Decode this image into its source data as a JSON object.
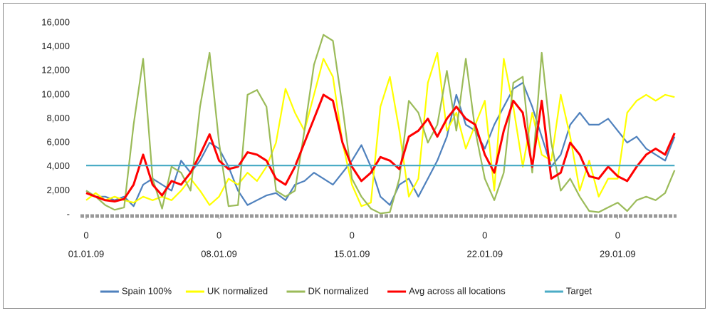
{
  "chart_data": {
    "type": "line",
    "x": [
      0,
      0.5,
      1,
      1.5,
      2,
      2.5,
      3,
      3.5,
      4,
      4.5,
      5,
      5.5,
      6,
      6.5,
      7,
      7.5,
      8,
      8.5,
      9,
      9.5,
      10,
      10.5,
      11,
      11.5,
      12,
      12.5,
      13,
      13.5,
      14,
      14.5,
      15,
      15.5,
      16,
      16.5,
      17,
      17.5,
      18,
      18.5,
      19,
      19.5,
      20,
      20.5,
      21,
      21.5,
      22,
      22.5,
      23,
      23.5,
      24,
      24.5,
      25,
      25.5,
      26,
      26.5,
      27,
      27.5,
      28,
      28.5,
      29,
      29.5,
      30,
      30.5,
      31
    ],
    "xlim": [
      -0.3,
      31.1
    ],
    "xticks": [
      {
        "value": 0,
        "hour": "0",
        "label": "01.01.09"
      },
      {
        "value": 7,
        "hour": "0",
        "label": "08.01.09"
      },
      {
        "value": 14,
        "hour": "0",
        "label": "15.01.09"
      },
      {
        "value": 21,
        "hour": "0",
        "label": "22.01.09"
      },
      {
        "value": 28,
        "hour": "0",
        "label": "29.01.09"
      }
    ],
    "ylim": [
      0,
      16000
    ],
    "yticks": [
      {
        "value": 0,
        "label": "-"
      },
      {
        "value": 2000,
        "label": "2,000"
      },
      {
        "value": 4000,
        "label": "4,000"
      },
      {
        "value": 6000,
        "label": "6,000"
      },
      {
        "value": 8000,
        "label": "8,000"
      },
      {
        "value": 10000,
        "label": "10,000"
      },
      {
        "value": 12000,
        "label": "12,000"
      },
      {
        "value": 14000,
        "label": "14,000"
      },
      {
        "value": 16000,
        "label": "16,000"
      }
    ],
    "legend": "bottom",
    "series": [
      {
        "name": "Spain 100%",
        "color": "#4f81bd",
        "values": [
          2000,
          1500,
          1500,
          1200,
          1500,
          700,
          2500,
          3000,
          2500,
          2000,
          4500,
          3500,
          4500,
          6000,
          5500,
          4000,
          2000,
          800,
          1200,
          1600,
          1800,
          1200,
          2500,
          2800,
          3500,
          3000,
          2500,
          3500,
          4500,
          5800,
          4000,
          1500,
          800,
          2500,
          3000,
          1500,
          3000,
          4500,
          6500,
          10000,
          7500,
          7000,
          5500,
          7500,
          9000,
          10500,
          11000,
          9000,
          6500,
          4000,
          5000,
          7500,
          8500,
          7500,
          7500,
          8000,
          7000,
          6000,
          6500,
          5500,
          5000,
          4500,
          6500
        ]
      },
      {
        "name": "UK normalized",
        "color": "#ffff00",
        "values": [
          1200,
          1800,
          1200,
          1500,
          1200,
          1000,
          1500,
          1200,
          1500,
          1200,
          2000,
          3000,
          2000,
          800,
          1500,
          3000,
          2500,
          3500,
          2800,
          4000,
          6000,
          10500,
          8500,
          7000,
          10000,
          13000,
          11500,
          6000,
          2500,
          700,
          1000,
          9000,
          11500,
          7000,
          1500,
          3000,
          11000,
          13500,
          7000,
          8500,
          5500,
          7500,
          9500,
          2000,
          13000,
          9000,
          4000,
          8500,
          5000,
          4500,
          10000,
          6500,
          2000,
          4500,
          1500,
          3000,
          3000,
          8500,
          9500,
          10000,
          9500,
          10000,
          9800
        ]
      },
      {
        "name": "DK normalized",
        "color": "#9bbb59",
        "values": [
          2000,
          1500,
          800,
          400,
          600,
          7500,
          13000,
          3000,
          500,
          4000,
          3500,
          2000,
          9000,
          13500,
          6000,
          700,
          800,
          10000,
          10400,
          9000,
          2000,
          1500,
          2000,
          7000,
          12500,
          15000,
          14500,
          9000,
          3000,
          1500,
          500,
          100,
          200,
          3000,
          9500,
          8500,
          6000,
          7500,
          12000,
          7000,
          13000,
          7000,
          3000,
          1200,
          3500,
          11000,
          11500,
          3500,
          13500,
          6000,
          2000,
          3000,
          1500,
          300,
          200,
          600,
          1000,
          300,
          1200,
          1500,
          1200,
          1800,
          3700
        ]
      },
      {
        "name": "Avg across all locations",
        "color": "#ff0000",
        "values": [
          1800,
          1500,
          1200,
          1100,
          1300,
          2500,
          5000,
          2500,
          1600,
          2800,
          2500,
          3500,
          5000,
          6700,
          4500,
          3800,
          4000,
          5200,
          5000,
          4500,
          3000,
          2500,
          4000,
          6000,
          8000,
          10000,
          9500,
          6000,
          4000,
          2800,
          3500,
          4800,
          4500,
          3800,
          6500,
          7000,
          8000,
          6500,
          8000,
          9000,
          8000,
          7500,
          5000,
          3500,
          7000,
          9500,
          8500,
          4000,
          9500,
          3000,
          3500,
          6000,
          5000,
          3200,
          3000,
          4000,
          3200,
          2800,
          4000,
          5000,
          5500,
          5000,
          6800
        ]
      },
      {
        "name": "Target",
        "color": "#4bacc6",
        "values": [
          4100,
          4100,
          4100,
          4100,
          4100,
          4100,
          4100,
          4100,
          4100,
          4100,
          4100,
          4100,
          4100,
          4100,
          4100,
          4100,
          4100,
          4100,
          4100,
          4100,
          4100,
          4100,
          4100,
          4100,
          4100,
          4100,
          4100,
          4100,
          4100,
          4100,
          4100,
          4100,
          4100,
          4100,
          4100,
          4100,
          4100,
          4100,
          4100,
          4100,
          4100,
          4100,
          4100,
          4100,
          4100,
          4100,
          4100,
          4100,
          4100,
          4100,
          4100,
          4100,
          4100,
          4100,
          4100,
          4100,
          4100,
          4100,
          4100,
          4100,
          4100,
          4100,
          4100
        ]
      }
    ]
  }
}
